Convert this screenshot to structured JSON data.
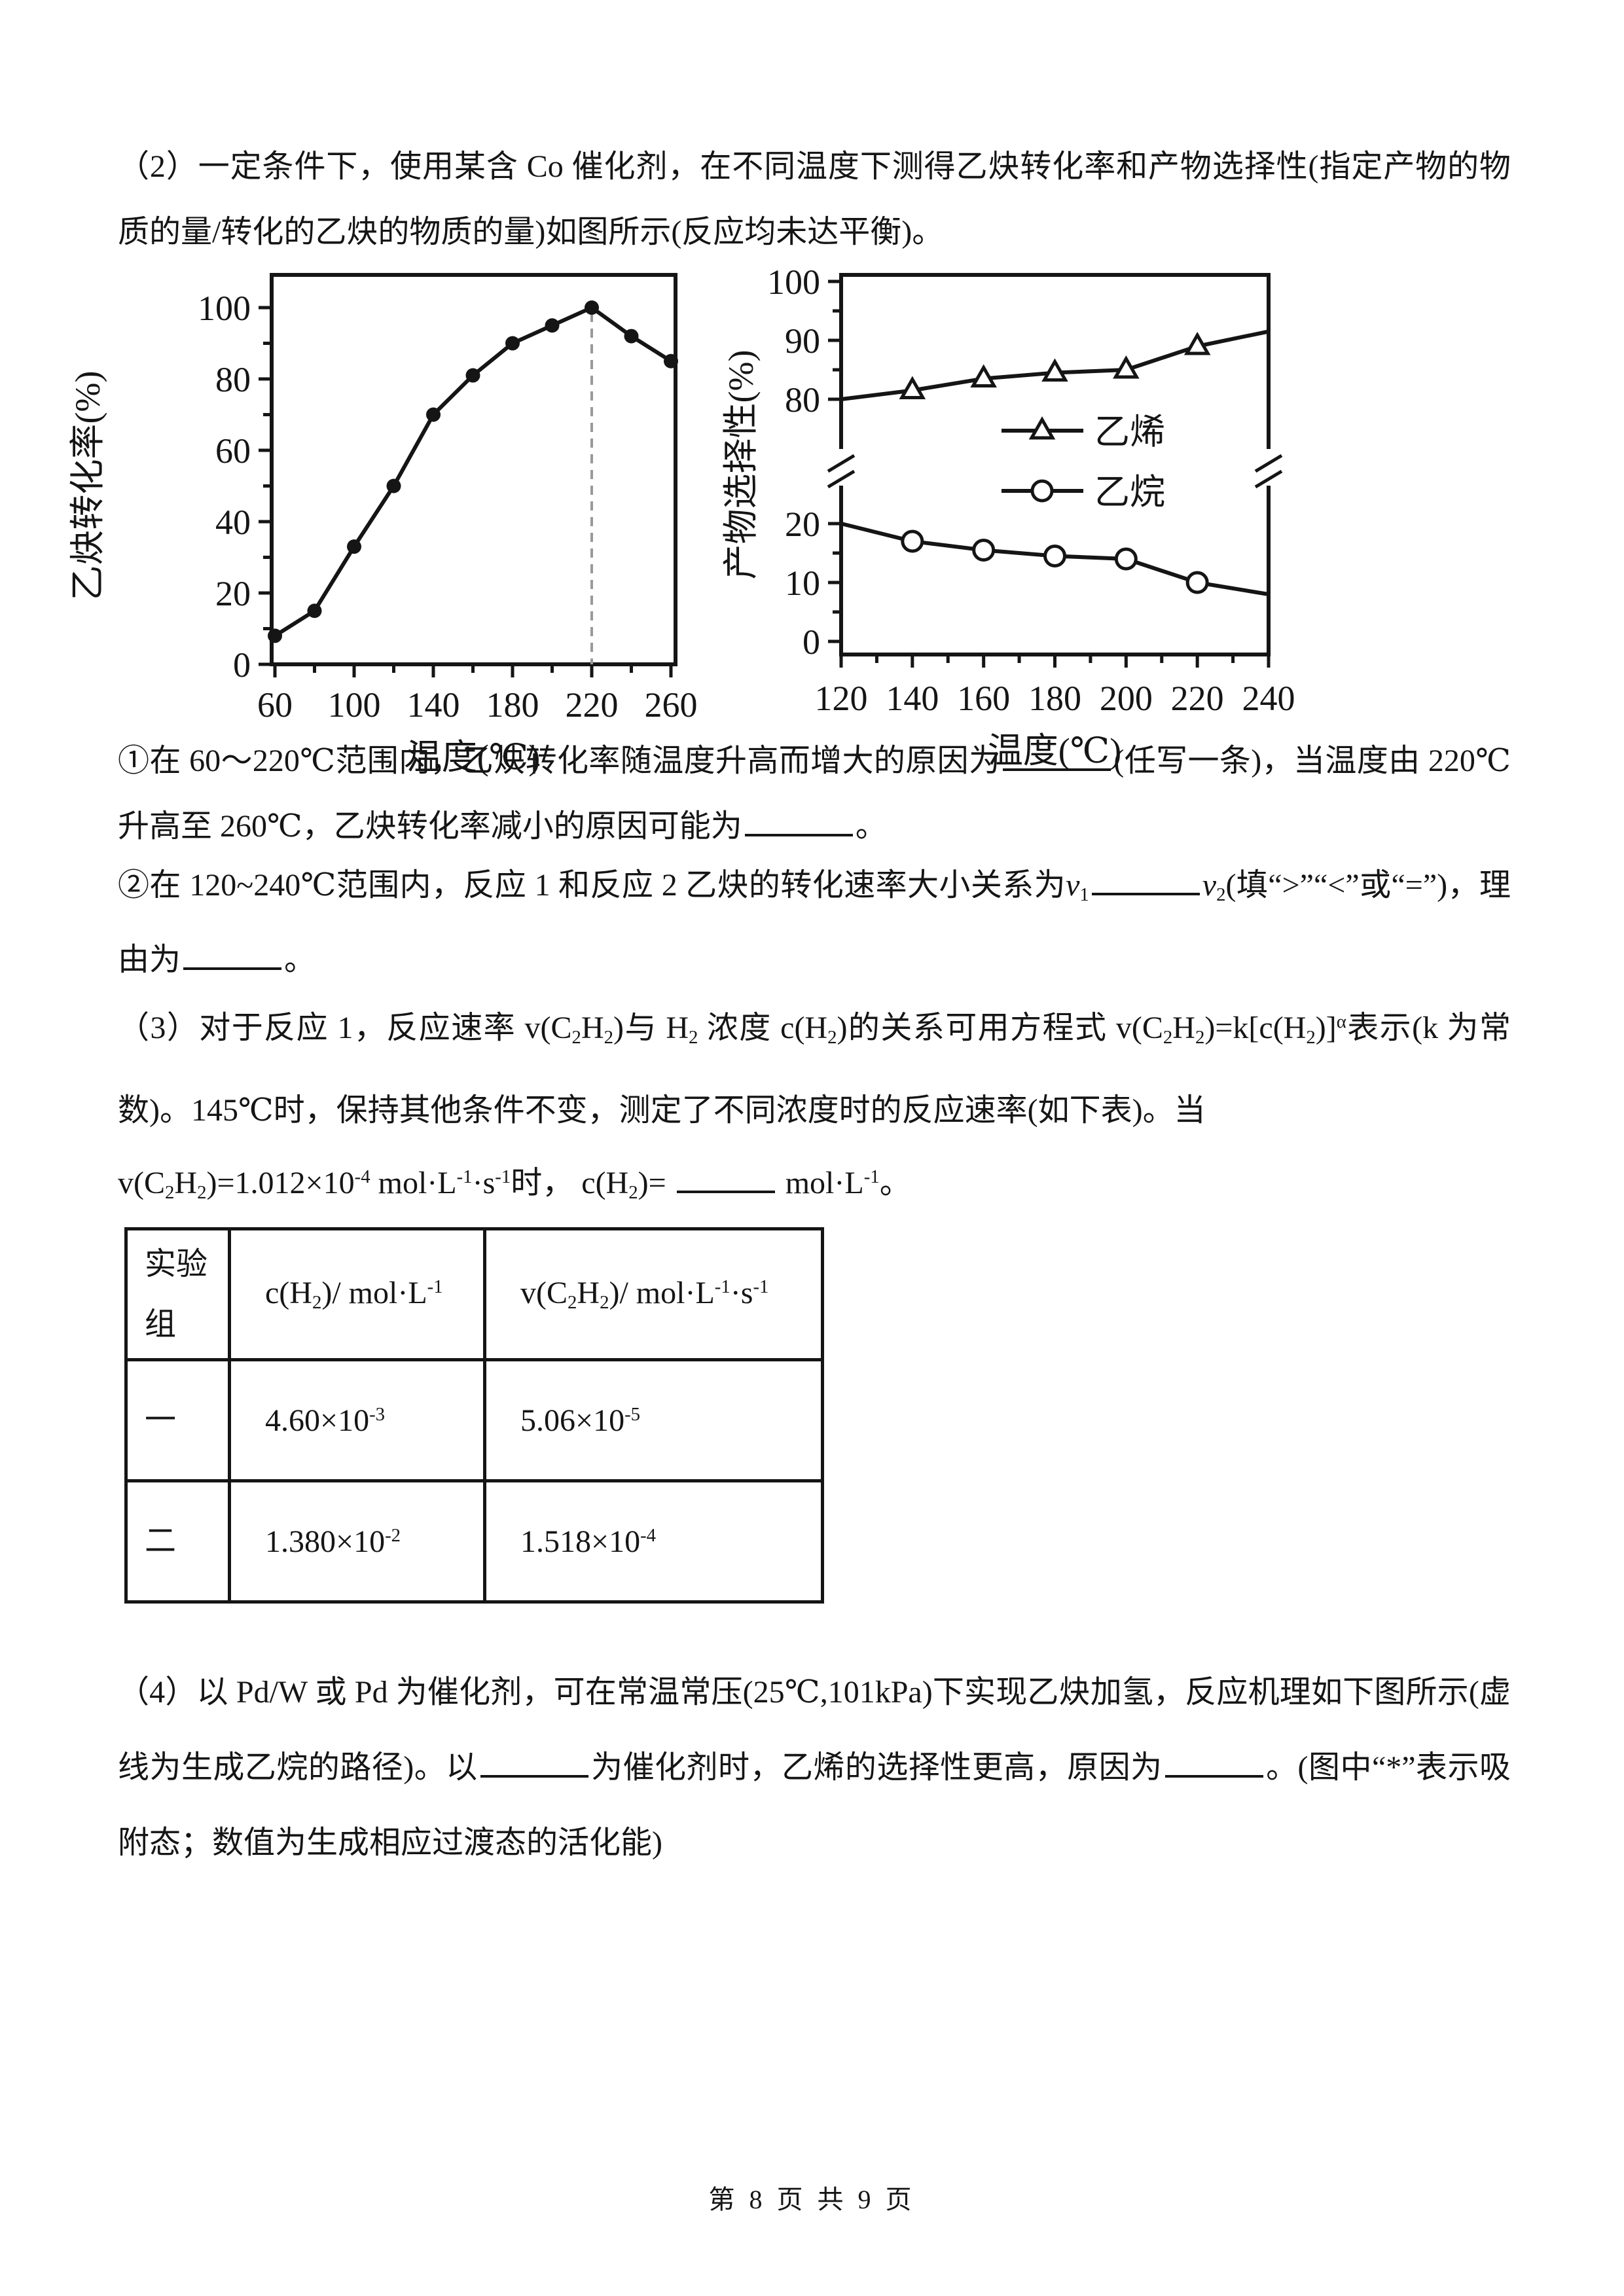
{
  "footer": "第 8 页 共 9 页",
  "paragraphs": {
    "p2": [
      {
        "t": "（2）一定条件下，使用某含 Co 催化剂，在不同温度下测得乙炔转化率和产物选择性(指定产物的物质的量/转化的乙炔的物质的量)如图所示(反应均未达平衡)。"
      }
    ],
    "q1": [
      {
        "t": "①在 60～220℃范围内，乙炔转化率随温度升高而增大的原因为"
      },
      {
        "blank": 165
      },
      {
        "t": "(任写一条)，当温度由 220℃升高至 260℃，乙炔转化率减小的原因可能为"
      },
      {
        "blank": 165
      },
      {
        "t": "。"
      }
    ],
    "q2": [
      {
        "t": "②在 120~240℃范围内，反应 1 和反应 2 乙炔的转化速率大小关系为"
      },
      {
        "i": "v"
      },
      {
        "sub": "1"
      },
      {
        "blank": 165
      },
      {
        "i": "v"
      },
      {
        "sub": "2"
      },
      {
        "t": "(填“>”“<”或“=”)，理由为"
      },
      {
        "blank": 150
      },
      {
        "t": "。"
      }
    ],
    "p3a": [
      {
        "t": "（3）对于反应 1，反应速率 v(C"
      },
      {
        "sub": "2"
      },
      {
        "t": "H"
      },
      {
        "sub": "2"
      },
      {
        "t": ")与 H"
      },
      {
        "sub": "2"
      },
      {
        "t": " 浓度 c(H"
      },
      {
        "sub": "2"
      },
      {
        "t": ")的关系可用方程式 v(C"
      },
      {
        "sub": "2"
      },
      {
        "t": "H"
      },
      {
        "sub": "2"
      },
      {
        "t": ")=k[c(H"
      },
      {
        "sub": "2"
      },
      {
        "t": ")]"
      },
      {
        "sup": "α"
      },
      {
        "t": "表示(k 为常数)。145℃时，保持其他条件不变，测定了不同浓度时的反应速率(如下表)。当"
      }
    ],
    "p3b": [
      {
        "t": "v(C"
      },
      {
        "sub": "2"
      },
      {
        "t": "H"
      },
      {
        "sub": "2"
      },
      {
        "t": ")=1.012×10"
      },
      {
        "sup": "-4"
      },
      {
        "t": " mol·L"
      },
      {
        "sup": "-1"
      },
      {
        "t": "·s"
      },
      {
        "sup": "-1"
      },
      {
        "t": "时， c(H"
      },
      {
        "sub": "2"
      },
      {
        "t": ")= "
      },
      {
        "blank": 150
      },
      {
        "t": " mol·L"
      },
      {
        "sup": "-1"
      },
      {
        "t": "。"
      }
    ],
    "p4": [
      {
        "t": "（4）以 Pd/W 或 Pd 为催化剂，可在常温常压(25℃,101kPa)下实现乙炔加氢，反应机理如下图所示(虚线为生成乙烷的路径)。以"
      },
      {
        "blank": 165
      },
      {
        "t": "为催化剂时，乙烯的选择性更高，原因为"
      },
      {
        "blank": 150
      },
      {
        "t": "。(图中“*”表示吸附态；数值为生成相应过渡态的活化能)"
      }
    ]
  },
  "table": {
    "headers": [
      [
        {
          "t": "实验组"
        }
      ],
      [
        {
          "t": "c(H"
        },
        {
          "sub": "2"
        },
        {
          "t": ")/ mol·L"
        },
        {
          "sup": "-1"
        }
      ],
      [
        {
          "t": "v(C"
        },
        {
          "sub": "2"
        },
        {
          "t": "H"
        },
        {
          "sub": "2"
        },
        {
          "t": ")/ mol·L"
        },
        {
          "sup": "-1"
        },
        {
          "t": "·s"
        },
        {
          "sup": "-1"
        }
      ]
    ],
    "rows": [
      [
        [
          {
            "t": "一"
          }
        ],
        [
          {
            "t": "4.60×10"
          },
          {
            "sup": "-3"
          }
        ],
        [
          {
            "t": "5.06×10"
          },
          {
            "sup": "-5"
          }
        ]
      ],
      [
        [
          {
            "t": "二"
          }
        ],
        [
          {
            "t": "1.380×10"
          },
          {
            "sup": "-2"
          }
        ],
        [
          {
            "t": "1.518×10"
          },
          {
            "sup": "-4"
          }
        ]
      ]
    ]
  },
  "chart_data": [
    {
      "type": "line",
      "xlabel": "温度(℃)",
      "ylabel": "乙炔转化率(%)",
      "x": [
        60,
        80,
        100,
        120,
        140,
        160,
        180,
        200,
        220,
        240,
        260
      ],
      "values": [
        8,
        15,
        33,
        50,
        70,
        81,
        90,
        95,
        100,
        92,
        85
      ],
      "xticks": [
        60,
        100,
        140,
        180,
        220,
        260
      ],
      "yticks": [
        0,
        20,
        40,
        60,
        80,
        100
      ],
      "xlim": [
        60,
        260
      ],
      "ylim": [
        0,
        110
      ],
      "marker": "filled-circle",
      "dashed_vline_x": 220,
      "grid": false,
      "legend": "none"
    },
    {
      "type": "line",
      "xlabel": "温度(℃)",
      "ylabel": "产物选择性(%)",
      "broken_y_axis": {
        "lower": [
          0,
          20
        ],
        "upper": [
          80,
          100
        ]
      },
      "x": [
        120,
        140,
        160,
        180,
        200,
        220,
        240
      ],
      "series": [
        {
          "name": "乙烯",
          "marker": "triangle",
          "values": [
            80,
            81.5,
            83.5,
            84.5,
            85,
            89,
            91.5
          ]
        },
        {
          "name": "乙烷",
          "marker": "circle",
          "values": [
            20,
            17,
            15.5,
            14.5,
            14,
            10,
            8
          ]
        }
      ],
      "xticks": [
        120,
        140,
        160,
        180,
        200,
        220,
        240
      ],
      "yticks_lower": [
        0,
        10,
        20
      ],
      "yticks_upper": [
        80,
        90,
        100
      ],
      "grid": false,
      "legend_position": "inside-center",
      "endpoint_markers": false
    }
  ]
}
